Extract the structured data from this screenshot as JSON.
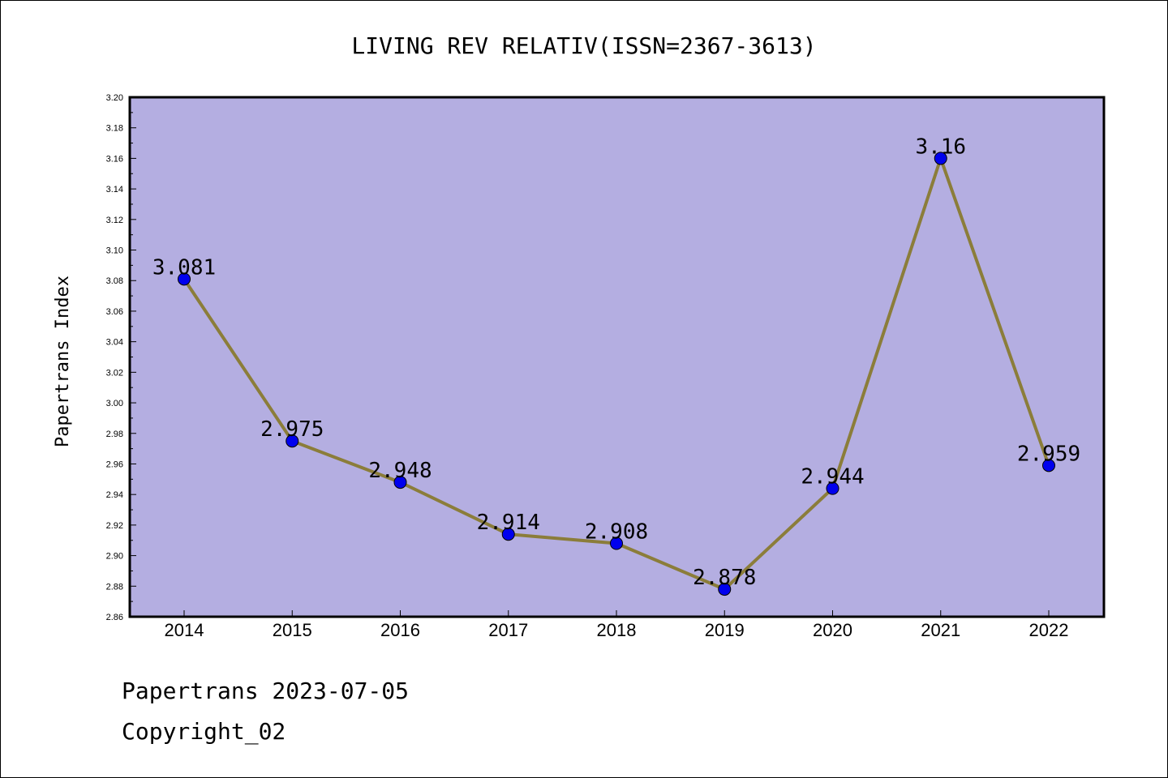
{
  "chart_data": {
    "type": "line",
    "title": "LIVING REV RELATIV(ISSN=2367-3613)",
    "xlabel": "",
    "ylabel": "Papertrans Index",
    "categories": [
      "2014",
      "2015",
      "2016",
      "2017",
      "2018",
      "2019",
      "2020",
      "2021",
      "2022"
    ],
    "series": [
      {
        "values": [
          3.081,
          2.975,
          2.948,
          2.914,
          2.908,
          2.878,
          2.944,
          3.16,
          2.959
        ],
        "data_labels": [
          "3.081",
          "2.975",
          "2.948",
          "2.914",
          "2.908",
          "2.878",
          "2.944",
          "3.16",
          "2.959"
        ]
      }
    ],
    "ylim": [
      2.86,
      3.2
    ],
    "yticks": [
      "2.86",
      "2.88",
      "2.90",
      "2.92",
      "2.94",
      "2.96",
      "2.98",
      "3.00",
      "3.02",
      "3.04",
      "3.06",
      "3.08",
      "3.10",
      "3.12",
      "3.14",
      "3.16",
      "3.18",
      "3.20"
    ],
    "grid": false,
    "legend": "none",
    "colors": {
      "plot_background": "#b4aee1",
      "line": "#8b7d3a",
      "marker": "#0000ee"
    }
  },
  "footer": {
    "line1": "Papertrans 2023-07-05",
    "line2": "Copyright_02"
  }
}
